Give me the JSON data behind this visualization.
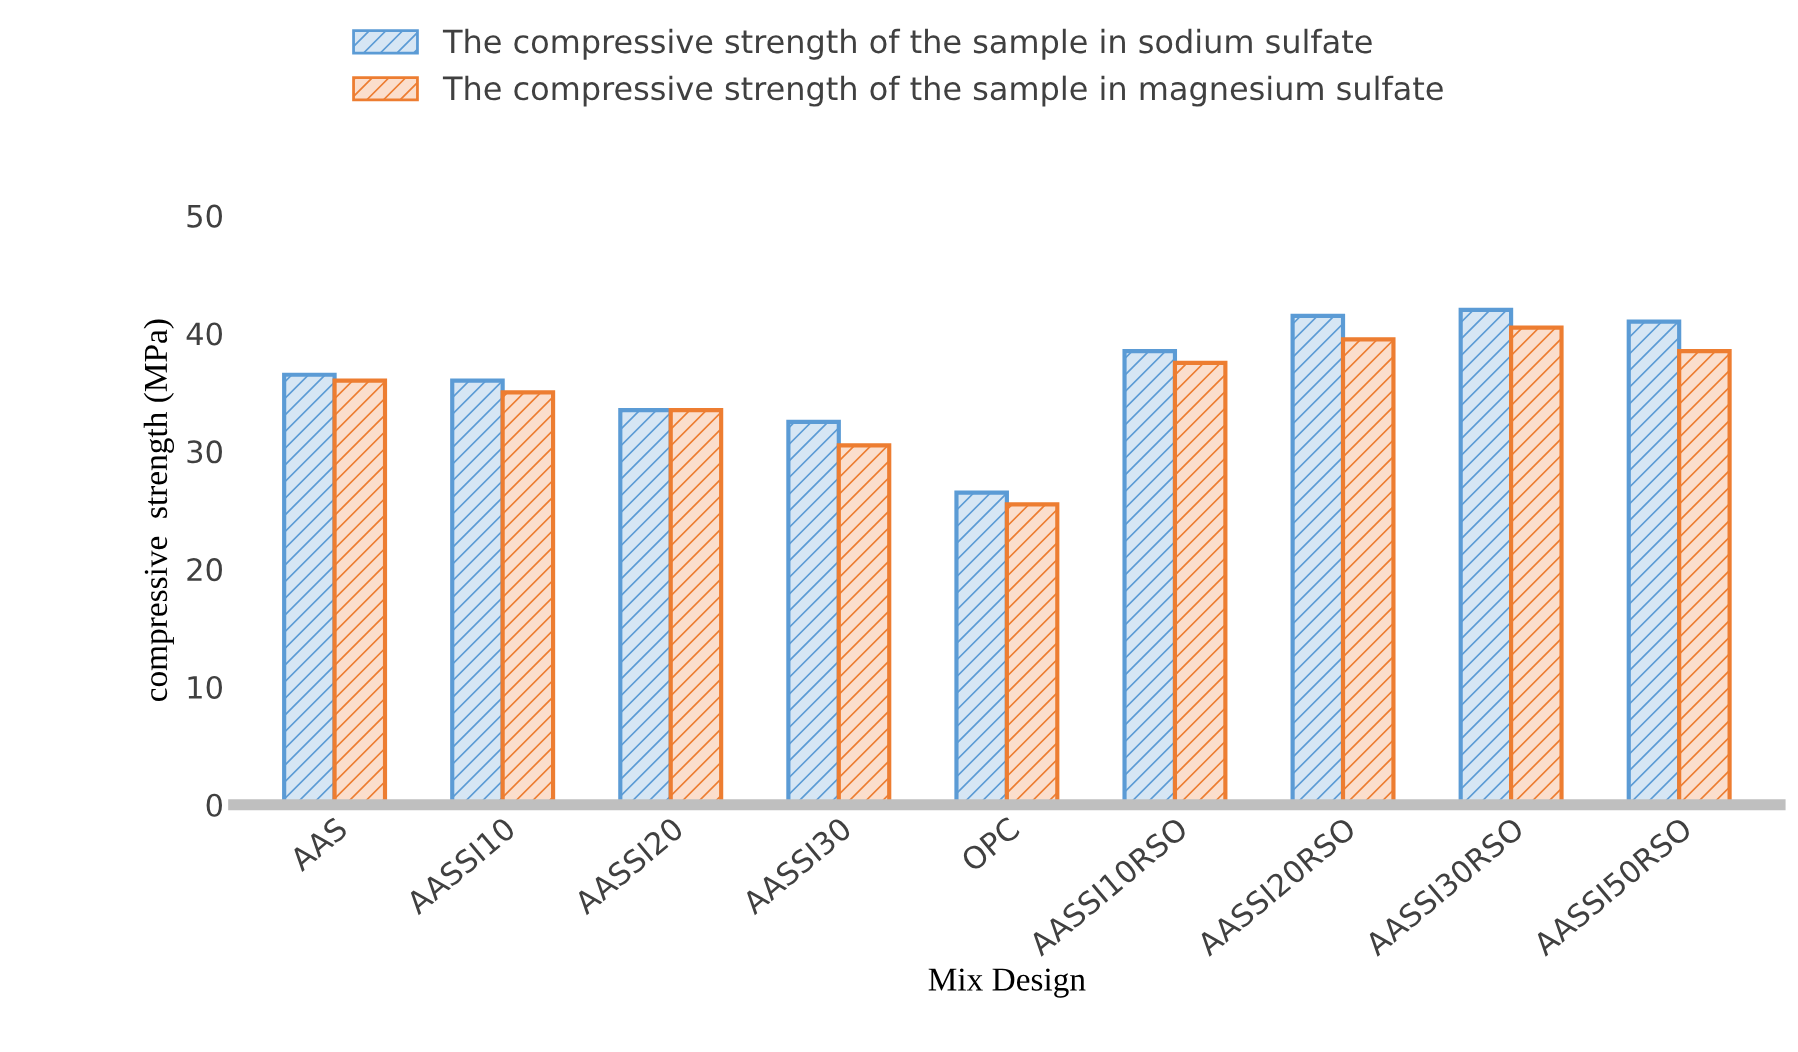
{
  "chart_data": {
    "type": "bar",
    "xlabel": "Mix Design",
    "ylabel": "compressive  strength (MPa)",
    "categories": [
      "AAS",
      "AASSI10",
      "AASSI20",
      "AASSI30",
      "OPC",
      "AASSI10RSO",
      "AASSI20RSO",
      "AASSI30RSO",
      "AASSI50RSO"
    ],
    "series": [
      {
        "name": "The compressive strength of the sample in sodium sulfate",
        "color": "#5b9bd5",
        "values": [
          36.5,
          36,
          33.5,
          32.5,
          26.5,
          38.5,
          41.5,
          42,
          41
        ]
      },
      {
        "name": "The compressive strength of the sample in magnesium sulfate",
        "color": "#ed7d31",
        "values": [
          36,
          35,
          33.5,
          30.5,
          25.5,
          37.5,
          39.5,
          40.5,
          38.5
        ]
      }
    ],
    "ylim": [
      0,
      50
    ],
    "yticks": [
      0,
      10,
      20,
      30,
      40,
      50
    ],
    "grid": false,
    "legend": "top"
  }
}
